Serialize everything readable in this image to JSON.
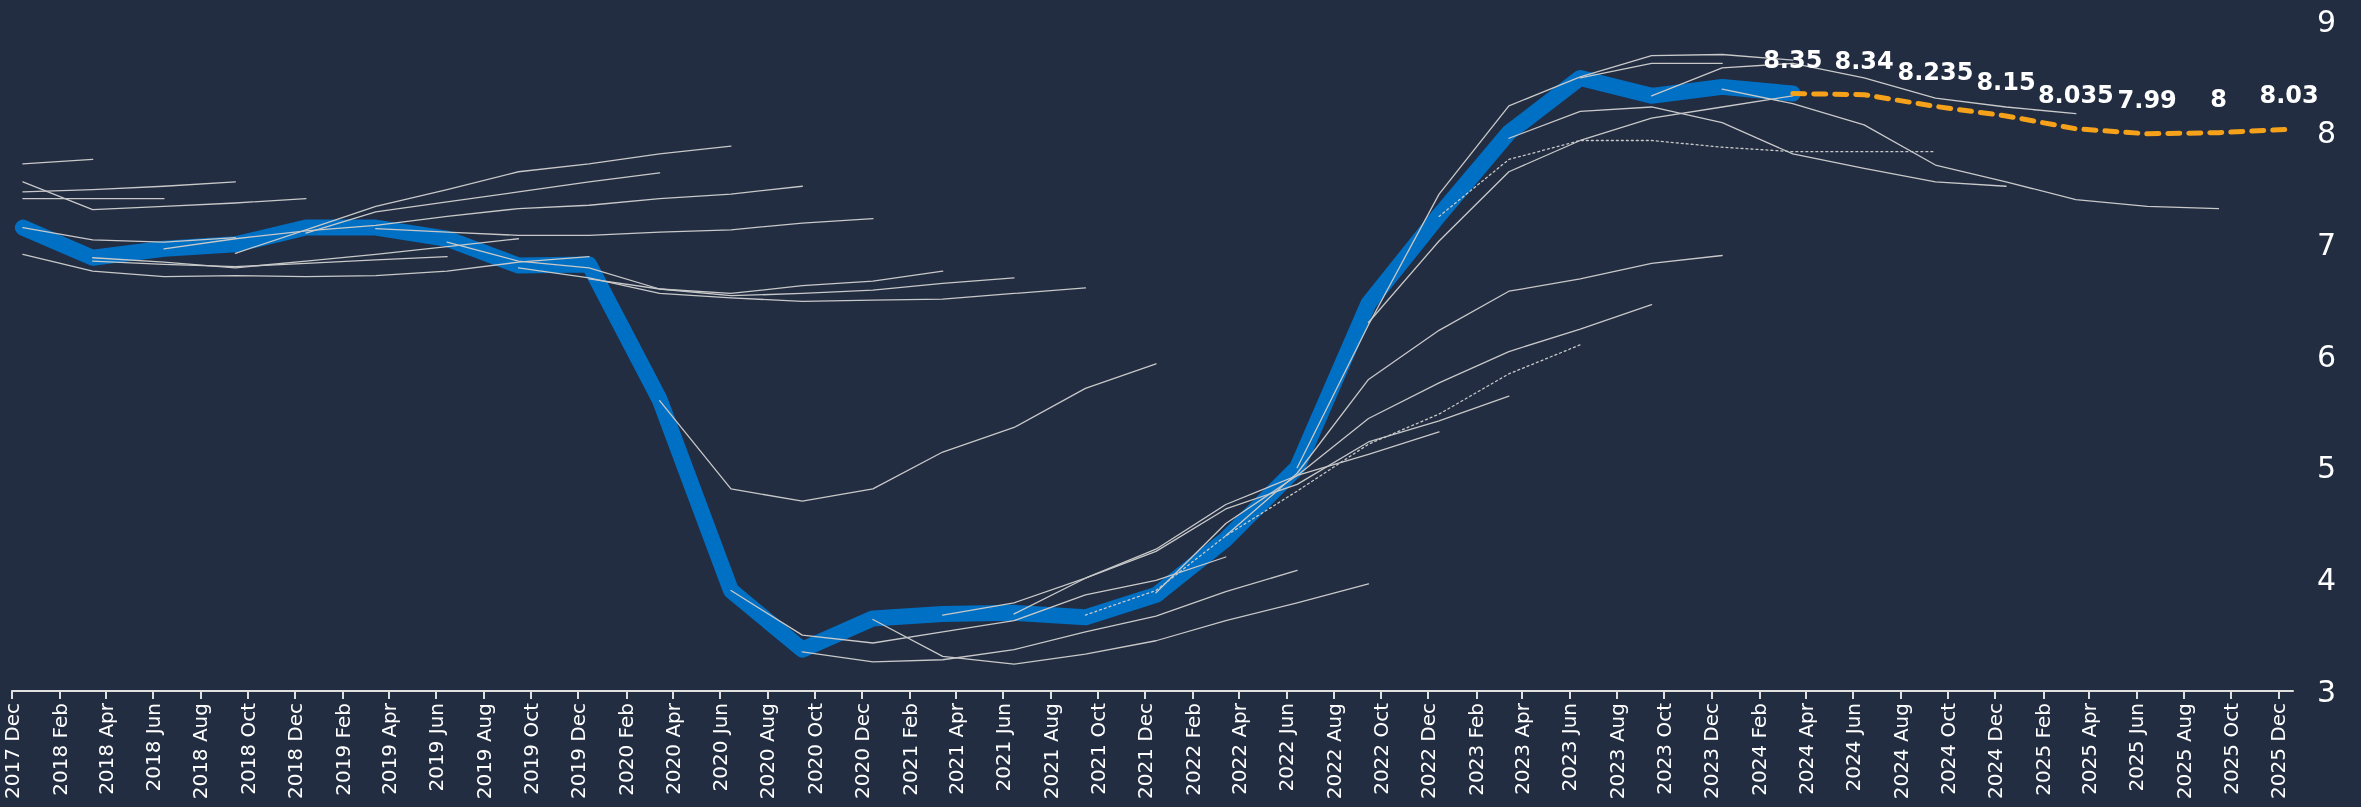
{
  "chart_data": {
    "type": "line",
    "marker": "none",
    "xlim": [
      "2017-12-01",
      "2025-12-20"
    ],
    "ylim": [
      3,
      9
    ],
    "yticks": [
      3,
      4,
      5,
      6,
      7,
      8,
      9
    ],
    "xticks": [
      {
        "value": "2017-12",
        "label": "2017 Dec"
      },
      {
        "value": "2018-02",
        "label": "2018 Feb"
      },
      {
        "value": "2018-04",
        "label": "2018 Apr"
      },
      {
        "value": "2018-06",
        "label": "2018 Jun"
      },
      {
        "value": "2018-08",
        "label": "2018 Aug"
      },
      {
        "value": "2018-10",
        "label": "2018 Oct"
      },
      {
        "value": "2018-12",
        "label": "2018 Dec"
      },
      {
        "value": "2019-02",
        "label": "2019 Feb"
      },
      {
        "value": "2019-04",
        "label": "2019 Apr"
      },
      {
        "value": "2019-06",
        "label": "2019 Jun"
      },
      {
        "value": "2019-08",
        "label": "2019 Aug"
      },
      {
        "value": "2019-10",
        "label": "2019 Oct"
      },
      {
        "value": "2019-12",
        "label": "2019 Dec"
      },
      {
        "value": "2020-02",
        "label": "2020 Feb"
      },
      {
        "value": "2020-04",
        "label": "2020 Apr"
      },
      {
        "value": "2020-06",
        "label": "2020 Jun"
      },
      {
        "value": "2020-08",
        "label": "2020 Aug"
      },
      {
        "value": "2020-10",
        "label": "2020 Oct"
      },
      {
        "value": "2020-12",
        "label": "2020 Dec"
      },
      {
        "value": "2021-02",
        "label": "2021 Feb"
      },
      {
        "value": "2021-04",
        "label": "2021 Apr"
      },
      {
        "value": "2021-06",
        "label": "2021 Jun"
      },
      {
        "value": "2021-08",
        "label": "2021 Aug"
      },
      {
        "value": "2021-10",
        "label": "2021 Oct"
      },
      {
        "value": "2021-12",
        "label": "2021 Dec"
      },
      {
        "value": "2022-02",
        "label": "2022 Feb"
      },
      {
        "value": "2022-04",
        "label": "2022 Apr"
      },
      {
        "value": "2022-06",
        "label": "2022 Jun"
      },
      {
        "value": "2022-08",
        "label": "2022 Aug"
      },
      {
        "value": "2022-10",
        "label": "2022 Oct"
      },
      {
        "value": "2022-12",
        "label": "2022 Dec"
      },
      {
        "value": "2023-02",
        "label": "2023 Feb"
      },
      {
        "value": "2023-04",
        "label": "2023 Apr"
      },
      {
        "value": "2023-06",
        "label": "2023 Jun"
      },
      {
        "value": "2023-08",
        "label": "2023 Aug"
      },
      {
        "value": "2023-10",
        "label": "2023 Oct"
      },
      {
        "value": "2023-12",
        "label": "2023 Dec"
      },
      {
        "value": "2024-02",
        "label": "2024 Feb"
      },
      {
        "value": "2024-04",
        "label": "2024 Apr"
      },
      {
        "value": "2024-06",
        "label": "2024 Jun"
      },
      {
        "value": "2024-08",
        "label": "2024 Aug"
      },
      {
        "value": "2024-10",
        "label": "2024 Oct"
      },
      {
        "value": "2024-12",
        "label": "2024 Dec"
      },
      {
        "value": "2025-02",
        "label": "2025 Feb"
      },
      {
        "value": "2025-04",
        "label": "2025 Apr"
      },
      {
        "value": "2025-06",
        "label": "2025 Jun"
      },
      {
        "value": "2025-08",
        "label": "2025 Aug"
      },
      {
        "value": "2025-10",
        "label": "2025 Oct"
      },
      {
        "value": "2025-12",
        "label": "2025 Dec"
      }
    ],
    "series": [
      {
        "color": "#0070c4",
        "line_style": "solid",
        "x": [
          "2017-12-15",
          "2018-03-15",
          "2018-06-15",
          "2018-09-15",
          "2018-12-15",
          "2019-03-15",
          "2019-06-15",
          "2019-09-15",
          "2019-12-15",
          "2020-03-15",
          "2020-06-15",
          "2020-09-15",
          "2020-12-15",
          "2021-03-15",
          "2021-06-15",
          "2021-09-15",
          "2021-12-15",
          "2022-03-15",
          "2022-06-15",
          "2022-09-15",
          "2022-12-15",
          "2023-03-15",
          "2023-06-15",
          "2023-09-15",
          "2023-12-15",
          "2024-03-15"
        ],
        "values": [
          7.15,
          6.88,
          6.96,
          7.0,
          7.15,
          7.15,
          7.05,
          6.81,
          6.82,
          5.61,
          3.9,
          3.37,
          3.65,
          3.69,
          3.7,
          3.66,
          3.86,
          4.36,
          5.0,
          6.47,
          7.26,
          8.0,
          8.49,
          8.33,
          8.41,
          8.35
        ]
      },
      {
        "color": "#c8c8c8",
        "line_style": "solid",
        "x": [
          "2017-12-15",
          "2018-03-15"
        ],
        "values": [
          7.72,
          7.76
        ]
      },
      {
        "color": "#c8c8c8",
        "line_style": "solid",
        "x": [
          "2017-12-15",
          "2018-03-15",
          "2018-06-15",
          "2018-09-15"
        ],
        "values": [
          7.47,
          7.49,
          7.52,
          7.56
        ]
      },
      {
        "color": "#c8c8c8",
        "line_style": "solid",
        "x": [
          "2017-12-15",
          "2018-03-15",
          "2018-06-15"
        ],
        "values": [
          7.41,
          7.41,
          7.41
        ]
      },
      {
        "color": "#c8c8c8",
        "line_style": "solid",
        "x": [
          "2017-12-15",
          "2018-03-15",
          "2018-06-15",
          "2018-09-15",
          "2018-12-15"
        ],
        "values": [
          7.56,
          7.31,
          7.34,
          7.37,
          7.41
        ]
      },
      {
        "color": "#c8c8c8",
        "line_style": "solid",
        "x": [
          "2017-12-15",
          "2018-03-15",
          "2018-06-15",
          "2018-09-15"
        ],
        "values": [
          7.15,
          7.04,
          7.02,
          7.06
        ]
      },
      {
        "color": "#c8c8c8",
        "line_style": "solid",
        "x": [
          "2017-12-15",
          "2018-03-15",
          "2018-06-15",
          "2018-09-15",
          "2018-12-15",
          "2019-03-15",
          "2019-06-15",
          "2019-09-15",
          "2019-12-15"
        ],
        "values": [
          6.91,
          6.76,
          6.71,
          6.72,
          6.71,
          6.72,
          6.76,
          6.84,
          6.89
        ]
      },
      {
        "color": "#c8c8c8",
        "line_style": "solid",
        "x": [
          "2018-03-15",
          "2018-06-15",
          "2018-09-15",
          "2018-12-15",
          "2019-03-15",
          "2019-06-15",
          "2019-09-15"
        ],
        "values": [
          6.88,
          6.84,
          6.79,
          6.85,
          6.91,
          6.98,
          7.05
        ]
      },
      {
        "color": "#c8c8c8",
        "line_style": "solid",
        "x": [
          "2018-03-15",
          "2018-06-15",
          "2018-09-15",
          "2018-12-15",
          "2019-03-15",
          "2019-06-15"
        ],
        "values": [
          6.85,
          6.82,
          6.8,
          6.83,
          6.86,
          6.89
        ]
      },
      {
        "color": "#c8c8c8",
        "line_style": "solid",
        "x": [
          "2018-06-15",
          "2018-09-15",
          "2018-12-15",
          "2019-03-15",
          "2019-06-15",
          "2019-09-15",
          "2019-12-15",
          "2020-03-15",
          "2020-06-15",
          "2020-09-15"
        ],
        "values": [
          6.96,
          7.05,
          7.12,
          7.17,
          7.25,
          7.32,
          7.35,
          7.41,
          7.45,
          7.52
        ]
      },
      {
        "color": "#c8c8c8",
        "line_style": "solid",
        "x": [
          "2018-09-15",
          "2018-12-15",
          "2019-03-15",
          "2019-06-15",
          "2019-09-15",
          "2019-12-15",
          "2020-03-15",
          "2020-06-15"
        ],
        "values": [
          6.92,
          7.13,
          7.34,
          7.49,
          7.65,
          7.72,
          7.81,
          7.88
        ]
      },
      {
        "color": "#c8c8c8",
        "line_style": "solid",
        "x": [
          "2018-12-15",
          "2019-03-15",
          "2019-06-15",
          "2019-09-15",
          "2019-12-15",
          "2020-03-15"
        ],
        "values": [
          7.1,
          7.29,
          7.38,
          7.47,
          7.56,
          7.64
        ]
      },
      {
        "color": "#c8c8c8",
        "line_style": "solid",
        "x": [
          "2019-03-15",
          "2019-06-15",
          "2019-09-15",
          "2019-12-15",
          "2020-03-15",
          "2020-06-15",
          "2020-09-15",
          "2020-12-15"
        ],
        "values": [
          7.14,
          7.11,
          7.08,
          7.08,
          7.11,
          7.13,
          7.19,
          7.23
        ]
      },
      {
        "color": "#c8c8c8",
        "line_style": "solid",
        "x": [
          "2019-06-15",
          "2019-09-15",
          "2019-12-15",
          "2020-03-15",
          "2020-06-15",
          "2020-09-15",
          "2020-12-15",
          "2021-03-15"
        ],
        "values": [
          7.02,
          6.85,
          6.79,
          6.6,
          6.56,
          6.63,
          6.67,
          6.76
        ]
      },
      {
        "color": "#c8c8c8",
        "line_style": "solid",
        "x": [
          "2019-09-15",
          "2019-12-15",
          "2020-03-15",
          "2020-06-15",
          "2020-09-15",
          "2020-12-15",
          "2021-03-15",
          "2021-06-15",
          "2021-09-15"
        ],
        "values": [
          6.79,
          6.7,
          6.56,
          6.52,
          6.49,
          6.5,
          6.51,
          6.56,
          6.61
        ]
      },
      {
        "color": "#c8c8c8",
        "line_style": "solid",
        "x": [
          "2019-12-15",
          "2020-03-15",
          "2020-06-15",
          "2020-09-15",
          "2020-12-15",
          "2021-03-15",
          "2021-06-15"
        ],
        "values": [
          6.69,
          6.6,
          6.54,
          6.56,
          6.59,
          6.65,
          6.7
        ]
      },
      {
        "color": "#c8c8c8",
        "line_style": "solid",
        "x": [
          "2020-03-15",
          "2020-06-15",
          "2020-09-15",
          "2020-12-15",
          "2021-03-15",
          "2021-06-15",
          "2021-09-15",
          "2021-12-15"
        ],
        "values": [
          5.6,
          4.81,
          4.7,
          4.81,
          5.14,
          5.36,
          5.71,
          5.93
        ]
      },
      {
        "color": "#c8c8c8",
        "line_style": "solid",
        "x": [
          "2020-06-15",
          "2020-09-15",
          "2020-12-15",
          "2021-03-15",
          "2021-06-15",
          "2021-09-15",
          "2021-12-15",
          "2022-03-15"
        ],
        "values": [
          3.9,
          3.5,
          3.43,
          3.53,
          3.63,
          3.86,
          3.99,
          4.2
        ]
      },
      {
        "color": "#c8c8c8",
        "line_style": "solid",
        "x": [
          "2020-09-15",
          "2020-12-15",
          "2021-03-15",
          "2021-06-15",
          "2021-09-15",
          "2021-12-15",
          "2022-03-15",
          "2022-06-15"
        ],
        "values": [
          3.35,
          3.26,
          3.28,
          3.37,
          3.53,
          3.67,
          3.89,
          4.08
        ]
      },
      {
        "color": "#c8c8c8",
        "line_style": "solid",
        "x": [
          "2020-12-15",
          "2021-03-15",
          "2021-06-15",
          "2021-09-15",
          "2021-12-15",
          "2022-03-15",
          "2022-06-15",
          "2022-09-15"
        ],
        "values": [
          3.64,
          3.31,
          3.24,
          3.33,
          3.45,
          3.63,
          3.79,
          3.96
        ]
      },
      {
        "color": "#c8c8c8",
        "line_style": "solid",
        "x": [
          "2021-03-15",
          "2021-06-15",
          "2021-09-15",
          "2021-12-15",
          "2022-03-15",
          "2022-06-15",
          "2022-09-15",
          "2022-12-15"
        ],
        "values": [
          3.68,
          3.79,
          4.01,
          4.27,
          4.67,
          4.93,
          5.12,
          5.32
        ]
      },
      {
        "color": "#c8c8c8",
        "line_style": "solid",
        "x": [
          "2021-06-15",
          "2021-09-15",
          "2021-12-15",
          "2022-03-15",
          "2022-06-15",
          "2022-09-15",
          "2022-12-15",
          "2023-03-15"
        ],
        "values": [
          3.69,
          4.01,
          4.25,
          4.63,
          4.85,
          5.23,
          5.42,
          5.64
        ]
      },
      {
        "color": "#c8c8c8",
        "line_style": "dotted",
        "x": [
          "2021-09-15",
          "2021-12-15",
          "2022-03-15",
          "2022-06-15",
          "2022-09-15",
          "2022-12-15",
          "2023-03-15",
          "2023-06-15"
        ],
        "values": [
          3.68,
          3.9,
          4.39,
          4.79,
          5.21,
          5.48,
          5.84,
          6.1
        ]
      },
      {
        "color": "#c8c8c8",
        "line_style": "solid",
        "x": [
          "2021-12-15",
          "2022-03-15",
          "2022-06-15",
          "2022-09-15",
          "2022-12-15",
          "2023-03-15",
          "2023-06-15",
          "2023-09-15"
        ],
        "values": [
          3.88,
          4.5,
          4.93,
          5.44,
          5.76,
          6.04,
          6.24,
          6.46
        ]
      },
      {
        "color": "#c8c8c8",
        "line_style": "solid",
        "x": [
          "2022-03-15",
          "2022-06-15",
          "2022-09-15",
          "2022-12-15",
          "2023-03-15",
          "2023-06-15",
          "2023-09-15",
          "2023-12-15"
        ],
        "values": [
          4.39,
          4.95,
          5.79,
          6.23,
          6.58,
          6.69,
          6.83,
          6.9
        ]
      },
      {
        "color": "#c8c8c8",
        "line_style": "solid",
        "x": [
          "2022-06-15",
          "2022-09-15",
          "2022-12-15",
          "2023-03-15",
          "2023-06-15",
          "2023-09-15",
          "2023-12-15",
          "2024-03-15"
        ],
        "values": [
          5.0,
          6.28,
          7.45,
          8.24,
          8.5,
          8.69,
          8.7,
          8.65
        ]
      },
      {
        "color": "#c8c8c8",
        "line_style": "dotted",
        "x": [
          "2022-12-15",
          "2023-03-15",
          "2023-06-15",
          "2023-09-15",
          "2023-12-15",
          "2024-03-15",
          "2024-06-15",
          "2024-09-15"
        ],
        "values": [
          7.25,
          7.76,
          7.93,
          7.93,
          7.87,
          7.83,
          7.83,
          7.83
        ]
      },
      {
        "color": "#c8c8c8",
        "line_style": "solid",
        "x": [
          "2022-09-15",
          "2022-12-15",
          "2023-03-15",
          "2023-06-15",
          "2023-09-15",
          "2023-12-15",
          "2024-03-15"
        ],
        "values": [
          6.3,
          7.03,
          7.65,
          7.93,
          8.13,
          8.23,
          8.33
        ]
      },
      {
        "color": "#c8c8c8",
        "line_style": "solid",
        "x": [
          "2023-03-15",
          "2023-06-15",
          "2023-09-15",
          "2023-12-15",
          "2024-03-15",
          "2024-06-15",
          "2024-09-15",
          "2024-12-15"
        ],
        "values": [
          7.95,
          8.19,
          8.23,
          8.09,
          7.81,
          7.68,
          7.56,
          7.52
        ]
      },
      {
        "color": "#c8c8c8",
        "line_style": "solid",
        "x": [
          "2023-06-15",
          "2023-09-15",
          "2023-12-15"
        ],
        "values": [
          8.49,
          8.62,
          8.62
        ]
      },
      {
        "color": "#c8c8c8",
        "line_style": "solid",
        "x": [
          "2023-09-15",
          "2023-12-15",
          "2024-03-15",
          "2024-06-15",
          "2024-09-15",
          "2024-12-15",
          "2025-03-15"
        ],
        "values": [
          8.33,
          8.58,
          8.62,
          8.49,
          8.31,
          8.23,
          8.17
        ]
      },
      {
        "color": "#c8c8c8",
        "line_style": "solid",
        "x": [
          "2023-12-15",
          "2024-03-15",
          "2024-06-15",
          "2024-09-15",
          "2024-12-15",
          "2025-03-15",
          "2025-06-15",
          "2025-09-15"
        ],
        "values": [
          8.39,
          8.26,
          8.07,
          7.71,
          7.56,
          7.4,
          7.34,
          7.32
        ]
      },
      {
        "color": "#f5a21a",
        "line_style": "dashed",
        "x": [
          "2024-03-15",
          "2024-06-15",
          "2024-09-15",
          "2024-12-15",
          "2025-03-15",
          "2025-06-15",
          "2025-09-15",
          "2025-12-15"
        ],
        "values": [
          8.35,
          8.34,
          8.235,
          8.15,
          8.035,
          7.99,
          8,
          8.03
        ],
        "value_labels": [
          "8.35",
          "8.34",
          "8.235",
          "8.15",
          "8.035",
          "7.99",
          "8",
          "8.03"
        ]
      }
    ]
  }
}
